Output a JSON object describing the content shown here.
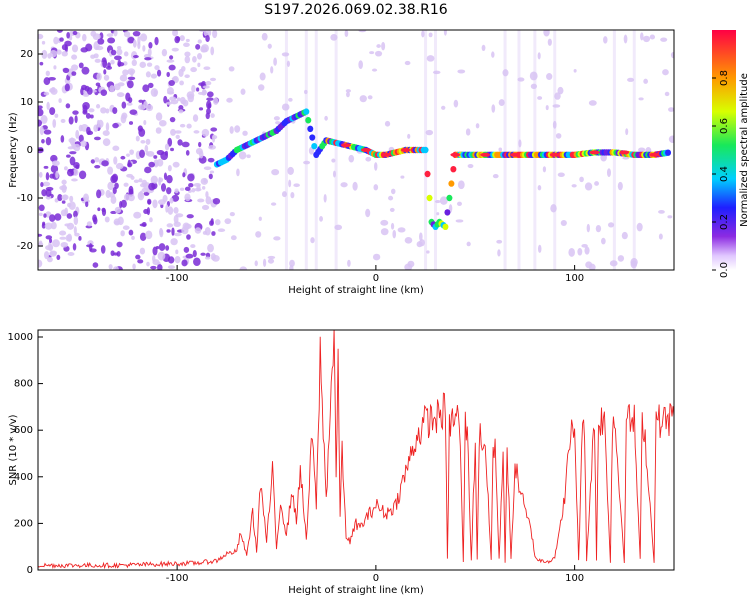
{
  "title": "S197.2026.069.02.38.R16",
  "colors": {
    "snr_line": "#ee2222",
    "axis": "#000000",
    "speckle": "#7a2bd6",
    "speckle_light": "#d8c3f3"
  },
  "chart_data": [
    {
      "type": "heatmap",
      "title": "S197.2026.069.02.38.R16",
      "xlabel": "Height of straight line (km)",
      "ylabel": "Frequency (Hz)",
      "xlim": [
        -170,
        150
      ],
      "ylim": [
        -25,
        25
      ],
      "xticks": [
        -100,
        0,
        100
      ],
      "yticks": [
        -20,
        -10,
        0,
        10,
        20
      ],
      "colorbar": {
        "label": "Normalized spectral amplitude",
        "range": [
          0,
          1
        ],
        "ticks": [
          0.0,
          0.2,
          0.4,
          0.6,
          0.8
        ]
      },
      "ridge": {
        "x": [
          -80,
          -75,
          -70,
          -65,
          -60,
          -55,
          -50,
          -45,
          -40,
          -35,
          -30,
          -25,
          -20,
          -15,
          -10,
          -5,
          0,
          5,
          10,
          15,
          20,
          25,
          28,
          30,
          32,
          35,
          40,
          50,
          60,
          70,
          80,
          90,
          100,
          110,
          120,
          130,
          140,
          148
        ],
        "freq": [
          -3,
          -2,
          0,
          1,
          2,
          3,
          4,
          6,
          7,
          8,
          -1,
          2,
          1.5,
          1,
          0.5,
          0,
          -1,
          -1,
          -0.5,
          0,
          0,
          0,
          -15,
          -16,
          -15,
          -16,
          -1,
          -1,
          -1,
          -1,
          -1,
          -1,
          -1,
          -0.5,
          -0.5,
          -1,
          -1,
          -0.5
        ]
      }
    },
    {
      "type": "line",
      "xlabel": "Height of straight line (km)",
      "ylabel": "SNR (10 * v/v)",
      "xlim": [
        -170,
        150
      ],
      "ylim": [
        0,
        1030
      ],
      "xticks": [
        -100,
        0,
        100
      ],
      "yticks": [
        0,
        200,
        400,
        600,
        800,
        1000
      ],
      "series": [
        {
          "name": "SNR",
          "x": [
            -170,
            -150,
            -130,
            -110,
            -90,
            -80,
            -75,
            -70,
            -68,
            -65,
            -62,
            -60,
            -58,
            -55,
            -52,
            -50,
            -48,
            -45,
            -42,
            -40,
            -38,
            -35,
            -32,
            -30,
            -28,
            -25,
            -23,
            -21,
            -20,
            -19,
            -18,
            -17,
            -15,
            -13,
            -10,
            -8,
            -5,
            0,
            5,
            10,
            15,
            20,
            25,
            30,
            35,
            36,
            37,
            40,
            42,
            44,
            45,
            46,
            48,
            50,
            51,
            52,
            55,
            58,
            59,
            60,
            62,
            64,
            65,
            66,
            68,
            70,
            72,
            74,
            75,
            78,
            80,
            82,
            85,
            88,
            90,
            92,
            95,
            98,
            100,
            102,
            104,
            105,
            106,
            110,
            111,
            112,
            115,
            118,
            119,
            120,
            125,
            126,
            127,
            130,
            133,
            134,
            135,
            140,
            141,
            142,
            145,
            148,
            150
          ],
          "values": [
            20,
            20,
            20,
            25,
            30,
            40,
            70,
            80,
            160,
            60,
            250,
            80,
            380,
            120,
            420,
            90,
            300,
            150,
            350,
            200,
            450,
            120,
            600,
            250,
            920,
            300,
            700,
            1020,
            400,
            850,
            250,
            500,
            150,
            120,
            200,
            180,
            220,
            280,
            240,
            280,
            420,
            560,
            640,
            650,
            690,
            40,
            620,
            660,
            650,
            40,
            620,
            600,
            40,
            560,
            40,
            580,
            540,
            40,
            520,
            540,
            40,
            520,
            40,
            520,
            40,
            460,
            360,
            300,
            250,
            180,
            60,
            40,
            40,
            40,
            60,
            140,
            320,
            580,
            620,
            40,
            620,
            630,
            40,
            660,
            40,
            650,
            640,
            40,
            620,
            660,
            40,
            650,
            640,
            640,
            40,
            640,
            620,
            40,
            650,
            640,
            640,
            650,
            660
          ]
        }
      ]
    }
  ]
}
